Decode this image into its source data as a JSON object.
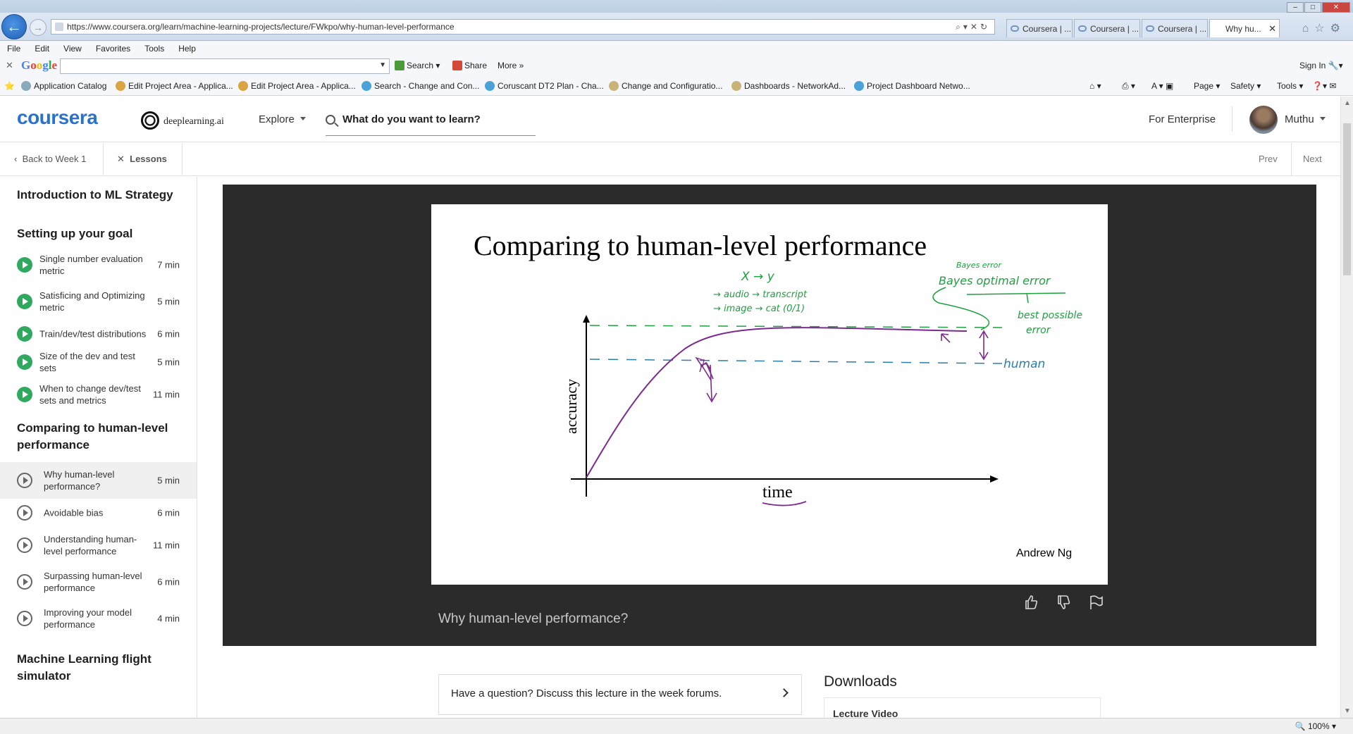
{
  "browser": {
    "url": "https://www.coursera.org/learn/machine-learning-projects/lecture/FWkpo/why-human-level-performance",
    "tabs": [
      {
        "label": "Coursera | ..."
      },
      {
        "label": "Coursera | ..."
      },
      {
        "label": "Coursera | ..."
      },
      {
        "label": "Why hu..."
      }
    ],
    "menu": [
      "File",
      "Edit",
      "View",
      "Favorites",
      "Tools",
      "Help"
    ],
    "google": {
      "logo": "Google",
      "search": "Search",
      "share": "Share",
      "more": "More",
      "signin": "Sign In"
    },
    "favorites": [
      "Application Catalog",
      "Edit Project Area - Applica...",
      "Edit Project Area - Applica...",
      "Search - Change and Con...",
      "Coruscant DT2 Plan - Cha...",
      "Change and Configuratio...",
      "Dashboards - NetworkAd...",
      "Project Dashboard Netwo..."
    ],
    "commandbar": {
      "page": "Page",
      "safety": "Safety",
      "tools": "Tools"
    },
    "zoom": "100%"
  },
  "header": {
    "logo": "coursera",
    "partner": "deeplearning.ai",
    "explore": "Explore",
    "search_text": "What do you want to learn?",
    "enterprise": "For Enterprise",
    "user": "Muthu"
  },
  "lessonbar": {
    "back": "Back to Week 1",
    "lessons": "Lessons",
    "prev": "Prev",
    "next": "Next"
  },
  "sidebar": {
    "sections": [
      {
        "title": "Introduction to ML Strategy",
        "items": []
      },
      {
        "title": "Setting up your goal",
        "items": [
          {
            "label": "Single number evaluation metric",
            "duration": "7 min",
            "done": true
          },
          {
            "label": "Satisficing and Optimizing metric",
            "duration": "5 min",
            "done": true
          },
          {
            "label": "Train/dev/test distributions",
            "duration": "6 min",
            "done": true
          },
          {
            "label": "Size of the dev and test sets",
            "duration": "5 min",
            "done": true
          },
          {
            "label": "When to change dev/test sets and metrics",
            "duration": "11 min",
            "done": true
          }
        ]
      },
      {
        "title": "Comparing to human-level performance",
        "items": [
          {
            "label": "Why human-level performance?",
            "duration": "5 min",
            "done": false,
            "active": true
          },
          {
            "label": "Avoidable bias",
            "duration": "6 min",
            "done": false
          },
          {
            "label": "Understanding human-level performance",
            "duration": "11 min",
            "done": false
          },
          {
            "label": "Surpassing human-level performance",
            "duration": "6 min",
            "done": false
          },
          {
            "label": "Improving your model performance",
            "duration": "4 min",
            "done": false
          }
        ]
      },
      {
        "title": "Machine Learning flight simulator",
        "items": []
      }
    ]
  },
  "slide": {
    "title": "Comparing to human-level performance",
    "ylabel": "accuracy",
    "xlabel": "time",
    "author": "Andrew Ng",
    "annotations": {
      "mapping": "X → y",
      "audio": "→ audio → transcript",
      "image": "→ image → cat (0/1)",
      "bayes_small": "Bayes error",
      "bayes": "Bayes optimal error",
      "best1": "best possible",
      "best2": "error",
      "human": "human"
    },
    "colors": {
      "ink": "#000000",
      "curve": "#7b2a8e",
      "green": "#1fa040",
      "blue": "#2a7fa8"
    }
  },
  "video": {
    "title": "Why human-level performance?"
  },
  "below": {
    "question": "Have a question? Discuss this lecture in the week forums.",
    "downloads": "Downloads",
    "lecture_video": "Lecture Video"
  }
}
